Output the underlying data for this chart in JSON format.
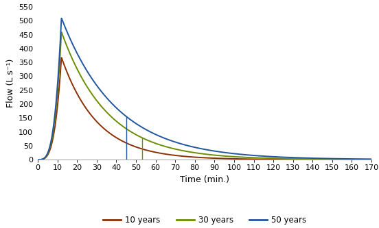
{
  "title": "",
  "xlabel": "Time (min.)",
  "ylabel": "Flow (L s⁻¹)",
  "xlim": [
    0,
    170
  ],
  "ylim": [
    0,
    550
  ],
  "xticks": [
    0,
    10,
    20,
    30,
    40,
    50,
    60,
    70,
    80,
    90,
    100,
    110,
    120,
    130,
    140,
    150,
    160,
    170
  ],
  "yticks": [
    0,
    50,
    100,
    150,
    200,
    250,
    300,
    350,
    400,
    450,
    500,
    550
  ],
  "curves": {
    "10yr": {
      "peak": 368,
      "t_peak": 12,
      "color": "#8B3000",
      "label": "10 years",
      "rise_shape": 3.5,
      "fall_rate": 0.055
    },
    "30yr": {
      "peak": 460,
      "t_peak": 12,
      "color": "#6B8E00",
      "label": "30 years",
      "rise_shape": 3.5,
      "fall_rate": 0.043
    },
    "50yr": {
      "peak": 510,
      "t_peak": 12,
      "color": "#2255A0",
      "label": "50 years",
      "rise_shape": 3.5,
      "fall_rate": 0.036
    }
  },
  "vline_50yr_x": 45,
  "vline_30yr_x": 53,
  "background_color": "#ffffff",
  "tick_fontsize": 8,
  "label_fontsize": 9,
  "line_width": 1.4
}
